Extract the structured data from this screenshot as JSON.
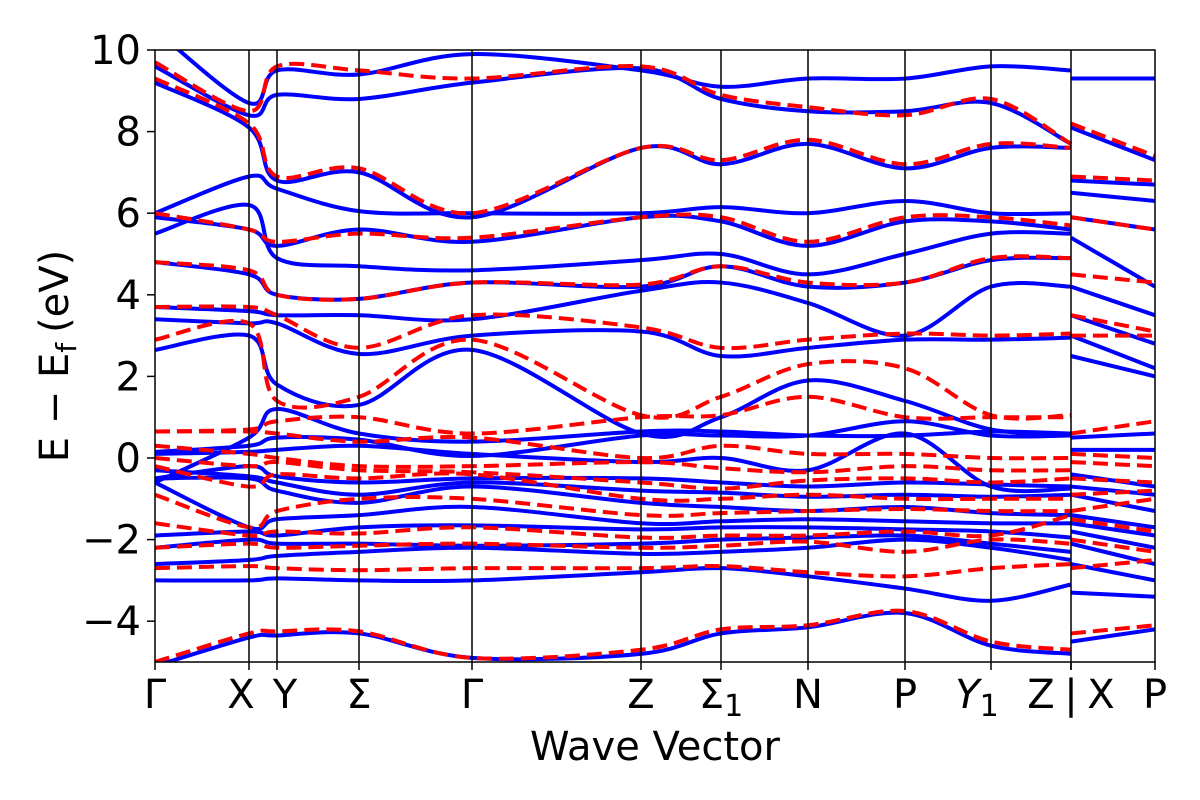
{
  "chart_data": {
    "type": "line",
    "title": "",
    "xlabel": "Wave Vector",
    "ylabel": "E − E",
    "ylabel_sub": "f",
    "ylabel_unit": "(eV)",
    "ylim": [
      -5,
      10
    ],
    "yticks": [
      -4,
      -2,
      0,
      2,
      4,
      6,
      8,
      10
    ],
    "ytick_labels": [
      "−4",
      "−2",
      "0",
      "2",
      "4",
      "6",
      "8",
      "10"
    ],
    "grid": false,
    "legend": "none",
    "x_range": [
      0,
      1
    ],
    "kpoints": [
      {
        "label": "Γ",
        "x": 0.0
      },
      {
        "label": "X",
        "x": 0.094
      },
      {
        "label": "Y",
        "x": 0.122
      },
      {
        "label": "Σ",
        "x": 0.204
      },
      {
        "label": "Γ",
        "x": 0.317
      },
      {
        "label": "Z",
        "x": 0.486
      },
      {
        "label": "Σ",
        "sub": "1",
        "x": 0.566
      },
      {
        "label": "N",
        "x": 0.653
      },
      {
        "label": "P",
        "x": 0.75
      },
      {
        "label": "Y",
        "sub": "1",
        "italic": true,
        "x": 0.836
      },
      {
        "label": "Z",
        "x": 0.916
      },
      {
        "label": "X",
        "x": 0.916
      },
      {
        "label": "P",
        "x": 1.0
      }
    ],
    "break_marker": "|",
    "x": [
      0.0,
      0.094,
      0.122,
      0.204,
      0.317,
      0.486,
      0.566,
      0.653,
      0.75,
      0.836,
      0.916,
      0.916,
      1.0
    ],
    "series": [
      {
        "color": "#0000ff",
        "style": "solid",
        "bands": [
          [
            -5.1,
            -4.4,
            -4.35,
            -4.3,
            -4.9,
            -4.8,
            -4.3,
            -4.15,
            -3.8,
            -4.6,
            -4.8,
            -4.5,
            -4.2
          ],
          [
            -3.0,
            -3.0,
            -2.95,
            -3.0,
            -3.0,
            -2.8,
            -2.7,
            -2.9,
            -3.2,
            -3.5,
            -3.1,
            -3.3,
            -3.4
          ],
          [
            -2.6,
            -2.5,
            -2.4,
            -2.3,
            -2.2,
            -2.35,
            -2.3,
            -2.2,
            -2.0,
            -2.2,
            -2.5,
            -2.6,
            -3.0
          ],
          [
            -2.2,
            -2.0,
            -2.1,
            -2.1,
            -2.15,
            -2.1,
            -2.0,
            -1.95,
            -1.9,
            -2.1,
            -2.3,
            -2.1,
            -2.6
          ],
          [
            -1.9,
            -1.8,
            -1.9,
            -1.7,
            -1.65,
            -1.75,
            -1.7,
            -1.7,
            -1.75,
            -1.8,
            -1.95,
            -1.8,
            -2.2
          ],
          [
            -0.6,
            -1.7,
            -1.5,
            -1.4,
            -1.2,
            -1.6,
            -1.55,
            -1.5,
            -1.55,
            -1.6,
            -1.6,
            -1.6,
            -1.9
          ],
          [
            -0.5,
            -0.5,
            -0.8,
            -1.1,
            -0.7,
            -1.1,
            -1.2,
            -1.3,
            -1.2,
            -1.35,
            -1.4,
            -1.4,
            -1.7
          ],
          [
            -0.3,
            -0.45,
            -0.6,
            -0.9,
            -0.6,
            -0.8,
            -0.85,
            -0.95,
            -0.9,
            -0.95,
            -0.9,
            -0.9,
            -1.3
          ],
          [
            -0.5,
            -0.2,
            -0.45,
            -0.6,
            -0.5,
            -0.5,
            -0.6,
            -0.7,
            -0.6,
            -0.65,
            -0.7,
            -0.7,
            -0.9
          ],
          [
            0.1,
            0.15,
            0.2,
            0.3,
            0.1,
            -0.1,
            0.0,
            -0.3,
            0.6,
            -0.7,
            -0.75,
            -0.4,
            -0.7
          ],
          [
            0.15,
            0.3,
            0.5,
            0.45,
            0.05,
            0.55,
            0.55,
            0.55,
            0.9,
            0.55,
            0.55,
            0.2,
            0.2
          ],
          [
            -0.6,
            0.5,
            1.2,
            0.6,
            0.4,
            0.65,
            0.65,
            0.55,
            0.55,
            0.65,
            0.6,
            0.5,
            0.6
          ],
          [
            2.65,
            3.0,
            1.8,
            1.3,
            2.65,
            0.6,
            1.0,
            1.9,
            1.4,
            0.7,
            0.6,
            2.5,
            2.0
          ],
          [
            3.4,
            3.3,
            3.3,
            2.55,
            3.0,
            3.1,
            2.5,
            2.7,
            2.9,
            2.9,
            2.95,
            3.0,
            2.2
          ],
          [
            3.7,
            3.6,
            3.5,
            3.5,
            3.4,
            4.1,
            4.3,
            3.8,
            3.0,
            4.2,
            4.2,
            3.5,
            2.8
          ],
          [
            4.8,
            4.5,
            4.0,
            3.9,
            4.3,
            4.2,
            4.7,
            4.2,
            4.3,
            4.85,
            4.9,
            4.2,
            3.5
          ],
          [
            5.5,
            6.2,
            4.9,
            4.7,
            4.6,
            4.85,
            5.0,
            4.5,
            5.0,
            5.5,
            5.5,
            5.4,
            4.2
          ],
          [
            5.9,
            5.6,
            5.2,
            5.6,
            5.3,
            5.9,
            5.8,
            5.2,
            5.8,
            5.8,
            5.6,
            5.9,
            5.6
          ],
          [
            6.0,
            6.9,
            6.6,
            6.05,
            6.0,
            6.0,
            6.15,
            6.0,
            6.3,
            6.0,
            6.0,
            6.5,
            6.3
          ],
          [
            9.2,
            8.1,
            6.8,
            7.0,
            5.9,
            7.6,
            7.2,
            7.7,
            7.1,
            7.6,
            7.6,
            6.8,
            6.7
          ],
          [
            9.6,
            8.4,
            8.9,
            8.8,
            9.2,
            9.55,
            8.8,
            8.5,
            8.5,
            8.7,
            7.7,
            8.1,
            7.3
          ],
          [
            10.5,
            8.7,
            9.5,
            9.4,
            9.9,
            9.5,
            9.1,
            9.3,
            9.3,
            9.6,
            9.5,
            9.3,
            9.3
          ]
        ]
      },
      {
        "color": "#ff0000",
        "style": "dashed",
        "bands": [
          [
            -5.0,
            -4.3,
            -4.25,
            -4.25,
            -4.9,
            -4.7,
            -4.2,
            -4.1,
            -3.75,
            -4.5,
            -4.7,
            -4.3,
            -4.1
          ],
          [
            -2.7,
            -2.65,
            -2.7,
            -2.75,
            -2.7,
            -2.7,
            -2.65,
            -2.8,
            -2.9,
            -2.7,
            -2.6,
            -2.7,
            -2.5
          ],
          [
            -2.2,
            -2.1,
            -2.2,
            -2.15,
            -2.1,
            -2.2,
            -2.15,
            -2.05,
            -2.3,
            -2.0,
            -2.1,
            -2.0,
            -2.3
          ],
          [
            -1.6,
            -1.9,
            -1.8,
            -1.85,
            -1.7,
            -1.95,
            -1.9,
            -1.9,
            -1.8,
            -1.9,
            -1.4,
            -1.5,
            -1.8
          ],
          [
            -0.9,
            -1.7,
            -1.3,
            -1.0,
            -1.0,
            -1.4,
            -1.35,
            -1.3,
            -1.25,
            -1.3,
            -1.3,
            -1.3,
            -1.0
          ],
          [
            -0.2,
            -0.7,
            -0.4,
            -0.5,
            -0.4,
            -1.0,
            -1.0,
            -0.9,
            -1.0,
            -1.0,
            -1.0,
            -0.9,
            -0.8
          ],
          [
            0.0,
            -0.2,
            -0.1,
            -0.3,
            -0.35,
            -0.6,
            -0.75,
            -0.55,
            -0.5,
            -0.6,
            -0.5,
            -0.5,
            -0.6
          ],
          [
            0.3,
            0.1,
            0.0,
            -0.2,
            -0.2,
            -0.1,
            -0.25,
            -0.35,
            -0.2,
            -0.3,
            -0.3,
            -0.1,
            -0.2
          ],
          [
            0.65,
            0.65,
            0.6,
            0.4,
            0.5,
            0.0,
            0.3,
            0.1,
            0.1,
            0.0,
            0.0,
            0.1,
            0.0
          ],
          [
            0.65,
            0.7,
            0.9,
            1.0,
            0.6,
            1.0,
            1.05,
            1.5,
            1.0,
            1.0,
            1.0,
            0.6,
            0.9
          ],
          [
            2.9,
            3.3,
            1.4,
            1.5,
            2.9,
            1.05,
            1.5,
            2.3,
            2.2,
            1.05,
            1.05,
            3.0,
            3.0
          ],
          [
            3.7,
            3.7,
            3.5,
            2.7,
            3.5,
            3.2,
            2.7,
            2.9,
            3.05,
            3.0,
            3.05,
            3.5,
            3.1
          ],
          [
            4.8,
            4.6,
            4.0,
            3.9,
            4.3,
            4.25,
            4.7,
            4.3,
            4.3,
            4.9,
            4.9,
            4.5,
            4.3
          ],
          [
            6.0,
            5.6,
            5.3,
            5.5,
            5.4,
            5.9,
            5.9,
            5.3,
            5.9,
            5.9,
            5.7,
            5.9,
            5.6
          ],
          [
            9.3,
            8.2,
            6.9,
            7.1,
            6.0,
            7.6,
            7.3,
            7.8,
            7.2,
            7.7,
            7.6,
            6.9,
            6.8
          ],
          [
            9.7,
            8.5,
            9.6,
            9.5,
            9.3,
            9.6,
            8.9,
            8.6,
            8.4,
            8.8,
            7.7,
            8.2,
            7.4
          ]
        ]
      }
    ]
  }
}
